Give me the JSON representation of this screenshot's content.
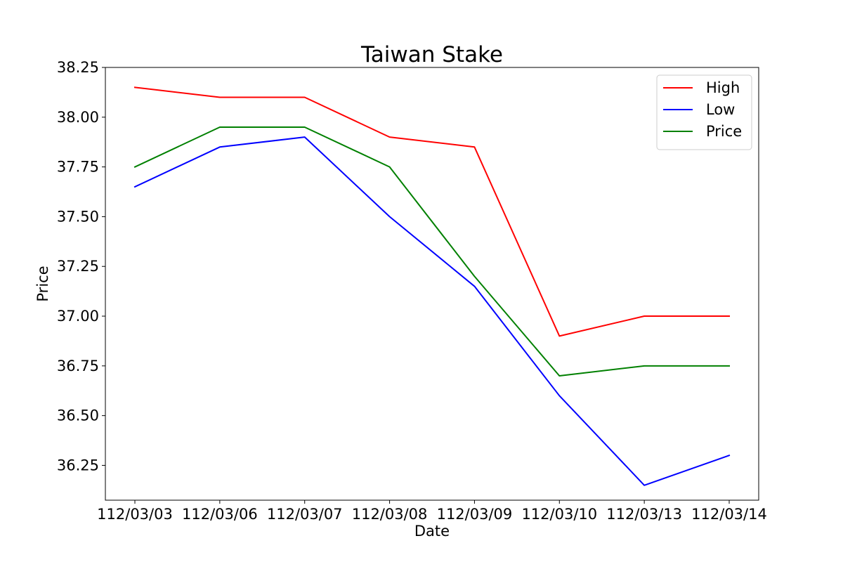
{
  "chart_data": {
    "type": "line",
    "title": "Taiwan Stake",
    "xlabel": "Date",
    "ylabel": "Price",
    "categories": [
      "112/03/03",
      "112/03/06",
      "112/03/07",
      "112/03/08",
      "112/03/09",
      "112/03/10",
      "112/03/13",
      "112/03/14"
    ],
    "ylim": [
      36.075,
      38.25
    ],
    "yticks": [
      "36.25",
      "36.50",
      "36.75",
      "37.00",
      "37.25",
      "37.50",
      "37.75",
      "38.00",
      "38.25"
    ],
    "grid": false,
    "legend_position": "top-right",
    "series": [
      {
        "name": "High",
        "color": "#ff0000",
        "values": [
          38.15,
          38.1,
          38.1,
          37.9,
          37.85,
          36.9,
          37.0,
          37.0
        ]
      },
      {
        "name": "Low",
        "color": "#0000ff",
        "values": [
          37.65,
          37.85,
          37.9,
          37.5,
          37.15,
          36.6,
          36.15,
          36.3
        ]
      },
      {
        "name": "Price",
        "color": "#008000",
        "values": [
          37.75,
          37.95,
          37.95,
          37.75,
          37.2,
          36.7,
          36.75,
          36.75
        ]
      }
    ]
  }
}
